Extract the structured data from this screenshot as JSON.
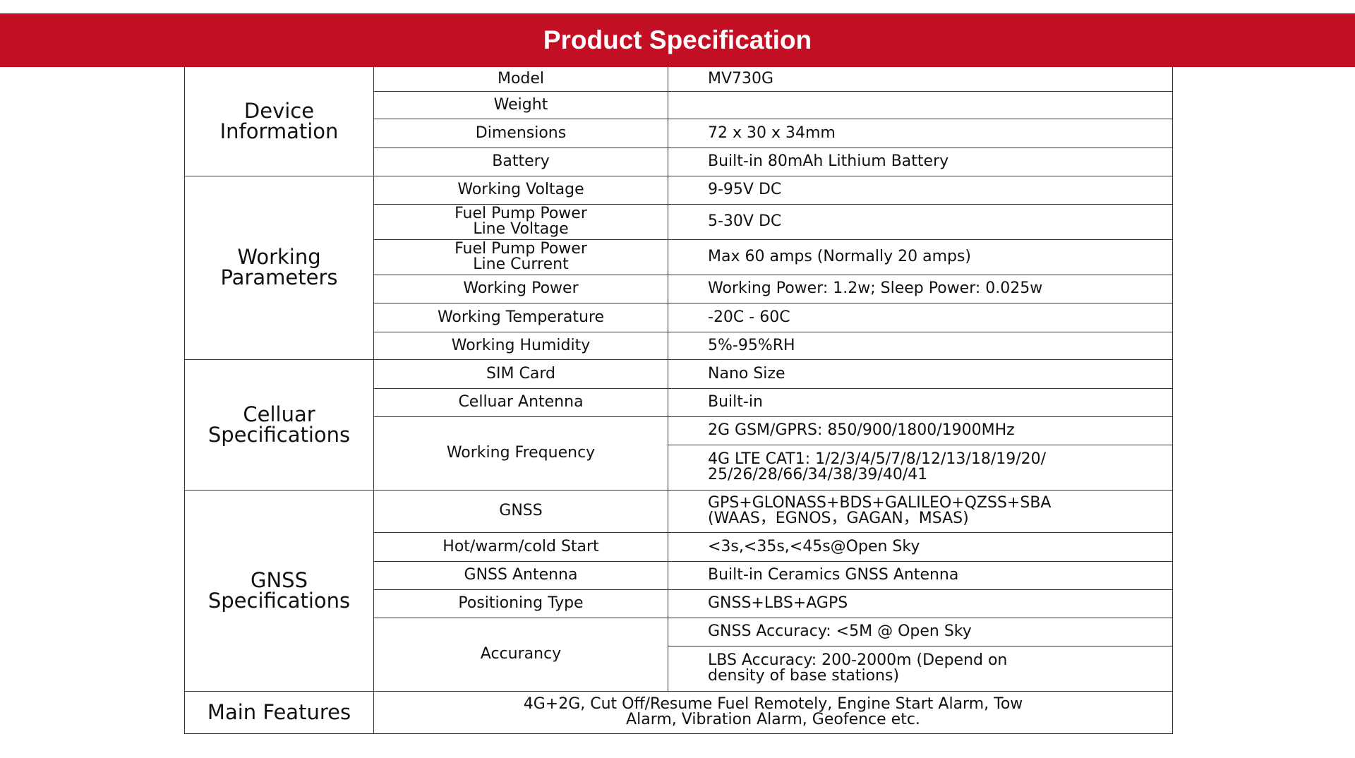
{
  "header": {
    "title": "Product Specification",
    "color": "#c20f24"
  },
  "sections": {
    "device": {
      "label": "Device\nInformation",
      "rows": [
        {
          "key": "Model",
          "value": "MV730G"
        },
        {
          "key": "Weight",
          "value": ""
        },
        {
          "key": "Dimensions",
          "value": "72 x 30 x 34mm"
        },
        {
          "key": "Battery",
          "value": "Built-in 80mAh Lithium Battery"
        }
      ]
    },
    "working": {
      "label": "Working\nParameters",
      "rows": [
        {
          "key": "Working Voltage",
          "value": "9-95V DC"
        },
        {
          "key": "Fuel Pump Power\nLine Voltage",
          "value": "5-30V DC"
        },
        {
          "key": "Fuel Pump Power\nLine Current",
          "value": "Max 60 amps (Normally 20 amps)"
        },
        {
          "key": "Working Power",
          "value": "Working Power: 1.2w; Sleep Power: 0.025w"
        },
        {
          "key": "Working Temperature",
          "value": "-20C - 60C"
        },
        {
          "key": "Working Humidity",
          "value": "5%-95%RH"
        }
      ]
    },
    "cellular": {
      "label": "Celluar\nSpecifications",
      "rows": [
        {
          "key": "SIM Card",
          "value": "Nano Size"
        },
        {
          "key": "Celluar Antenna",
          "value": "Built-in"
        }
      ],
      "frequency": {
        "key": "Working Frequency",
        "values": [
          "2G GSM/GPRS: 850/900/1800/1900MHz",
          "4G LTE CAT1: 1/2/3/4/5/7/8/12/13/18/19/20/\n25/26/28/66/34/38/39/40/41"
        ]
      }
    },
    "gnss": {
      "label": "GNSS\nSpecifications",
      "rows": [
        {
          "key": "GNSS",
          "value": "GPS+GLONASS+BDS+GALILEO+QZSS+SBA\n(WAAS，EGNOS，GAGAN，MSAS)"
        },
        {
          "key": "Hot/warm/cold Start",
          "value": "<3s,<35s,<45s@Open Sky"
        },
        {
          "key": "GNSS Antenna",
          "value": "Built-in Ceramics GNSS Antenna"
        },
        {
          "key": "Positioning Type",
          "value": "GNSS+LBS+AGPS"
        }
      ],
      "accuracy": {
        "key": "Accurancy",
        "values": [
          "GNSS Accuracy: <5M @ Open Sky",
          "LBS Accuracy: 200-2000m (Depend on\ndensity of base stations)"
        ]
      }
    },
    "features": {
      "label": "Main Features",
      "value": "4G+2G, Cut Off/Resume Fuel Remotely, Engine Start Alarm, Tow\nAlarm, Vibration Alarm, Geofence etc."
    }
  }
}
